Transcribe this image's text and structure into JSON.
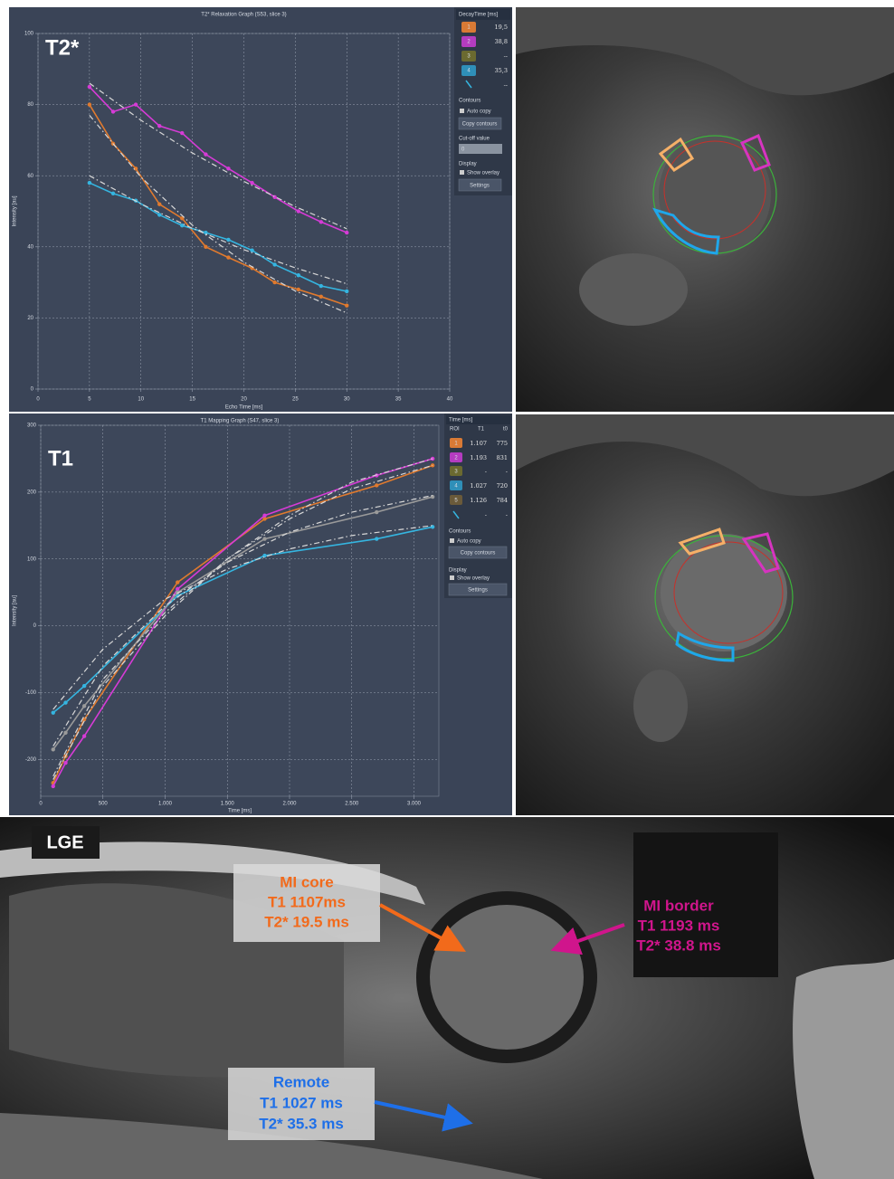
{
  "chart_data": [
    {
      "type": "line",
      "label": "T2*",
      "title": "T2* Relaxation Graph (S53, slice 3)",
      "x_label": "Echo Time [ms]",
      "y_label": "Intensity [au]",
      "xlim": [
        0,
        40
      ],
      "xticks": [
        0,
        5,
        10,
        15,
        20,
        25,
        30,
        35,
        40
      ],
      "ylim": [
        0,
        100
      ],
      "yticks": [
        0,
        20,
        40,
        60,
        80,
        100
      ],
      "grid": true,
      "series": [
        {
          "color": "#e07a2e",
          "markers": true,
          "x": [
            5,
            7.3,
            9.5,
            11.8,
            14,
            16.3,
            18.5,
            20.8,
            23,
            25.3,
            27.5,
            30
          ],
          "values": [
            80,
            69,
            62,
            52,
            48,
            40,
            37,
            34,
            30,
            28,
            26,
            23.5
          ]
        },
        {
          "color": "#d63bd6",
          "markers": true,
          "x": [
            5,
            7.3,
            9.5,
            11.8,
            14,
            16.3,
            18.5,
            20.8,
            23,
            25.3,
            27.5,
            30
          ],
          "values": [
            85,
            78,
            80,
            74,
            72,
            66,
            62,
            58,
            54,
            50,
            47,
            44
          ]
        },
        {
          "color": "#35b5e0",
          "markers": true,
          "x": [
            5,
            7.3,
            9.5,
            11.8,
            14,
            16.3,
            18.5,
            20.8,
            23,
            25.3,
            27.5,
            30
          ],
          "values": [
            58,
            55,
            53,
            49,
            46,
            44,
            42,
            39,
            35,
            32,
            29,
            27.5
          ]
        },
        {
          "color": "#d8d8d8",
          "dashed": true,
          "x": [
            5,
            10,
            15,
            20,
            25,
            30
          ],
          "values": [
            77,
            59.6,
            46.1,
            35.7,
            27.6,
            21.4
          ]
        },
        {
          "color": "#d8d8d8",
          "dashed": true,
          "x": [
            5,
            10,
            15,
            20,
            25,
            30
          ],
          "values": [
            86,
            75.6,
            66.4,
            58.4,
            51.3,
            45.1
          ]
        },
        {
          "color": "#d8d8d8",
          "dashed": true,
          "x": [
            5,
            10,
            15,
            20,
            25,
            30
          ],
          "values": [
            60,
            52.1,
            45.2,
            39.2,
            34.1,
            29.6
          ]
        }
      ]
    },
    {
      "type": "line",
      "label": "T1",
      "title": "T1 Mapping Graph (S47, slice 3)",
      "x_label": "Time [ms]",
      "y_label": "Intensity [au]",
      "xlim": [
        0,
        3200
      ],
      "xticks": [
        0,
        500,
        {
          "value": 1000,
          "label": "1.000"
        },
        {
          "value": 1500,
          "label": "1.500"
        },
        {
          "value": 2000,
          "label": "2.000"
        },
        {
          "value": 2500,
          "label": "2.500"
        },
        {
          "value": 3000,
          "label": "3.000"
        }
      ],
      "ylim": [
        -255,
        300
      ],
      "yticks": [
        -200,
        -100,
        0,
        100,
        200,
        300
      ],
      "grid": true,
      "series": [
        {
          "color": "#e07a2e",
          "markers": true,
          "x": [
            100,
            200,
            350,
            1100,
            1800,
            2700,
            3150
          ],
          "values": [
            -235,
            -195,
            -140,
            65,
            160,
            210,
            240
          ]
        },
        {
          "color": "#d63bd6",
          "markers": true,
          "x": [
            100,
            200,
            350,
            1100,
            1800,
            2700,
            3150
          ],
          "values": [
            -240,
            -205,
            -165,
            55,
            165,
            225,
            250
          ]
        },
        {
          "color": "#35b5e0",
          "markers": true,
          "x": [
            100,
            200,
            350,
            1100,
            1800,
            2700,
            3150
          ],
          "values": [
            -130,
            -115,
            -90,
            45,
            105,
            130,
            148
          ]
        },
        {
          "color": "#9a9a9a",
          "markers": true,
          "x": [
            100,
            200,
            350,
            1100,
            1800,
            2700,
            3150
          ],
          "values": [
            -185,
            -160,
            -120,
            50,
            130,
            170,
            193
          ]
        },
        {
          "color": "#d8d8d8",
          "dashed": true,
          "x": [
            100,
            500,
            1000,
            1500,
            2000,
            2500,
            3150
          ],
          "values": [
            -225,
            -80,
            20,
            100,
            160,
            205,
            240
          ]
        },
        {
          "color": "#d8d8d8",
          "dashed": true,
          "x": [
            100,
            500,
            1000,
            1500,
            2000,
            2500,
            3150
          ],
          "values": [
            -230,
            -90,
            15,
            100,
            165,
            215,
            250
          ]
        },
        {
          "color": "#d8d8d8",
          "dashed": true,
          "x": [
            100,
            500,
            1000,
            1500,
            2000,
            2500,
            3150
          ],
          "values": [
            -125,
            -35,
            40,
            85,
            115,
            135,
            150
          ]
        },
        {
          "color": "#d8d8d8",
          "dashed": true,
          "x": [
            100,
            500,
            1000,
            1500,
            2000,
            2500,
            3150
          ],
          "values": [
            -180,
            -60,
            30,
            95,
            140,
            170,
            195
          ]
        }
      ]
    }
  ],
  "t2_panel": {
    "header": "DecayTime [ms]",
    "rows": [
      [
        "1",
        "19,5"
      ],
      [
        "2",
        "38,8"
      ],
      [
        "3",
        "--"
      ],
      [
        "4",
        "35,3"
      ],
      [
        "--"
      ]
    ],
    "contours": "Contours",
    "auto_copy": "Auto copy",
    "copy_button": "Copy contours",
    "cutoff_label": "Cut-off value",
    "cutoff_value": "0",
    "display": "Display",
    "show_overlay": "Show overlay",
    "settings": "Settings"
  },
  "t1_panel": {
    "header": "Time [ms]",
    "columns": [
      "ROI",
      "T1",
      "t0"
    ],
    "rows": [
      [
        "1",
        "1.107",
        "775"
      ],
      [
        "2",
        "1.193",
        "831"
      ],
      [
        "3",
        "-",
        "-"
      ],
      [
        "4",
        "1.027",
        "720"
      ],
      [
        "5",
        "1.126",
        "784"
      ],
      [
        "-",
        "-"
      ]
    ],
    "contours": "Contours",
    "auto_copy": "Auto copy",
    "copy_button": "Copy contours",
    "display": "Display",
    "show_overlay": "Show overlay",
    "settings": "Settings"
  },
  "lge": {
    "label": "LGE",
    "annotations": [
      {
        "lines": [
          "MI core",
          "T1 1107ms",
          "T2* 19.5 ms"
        ]
      },
      {
        "lines": [
          "MI border",
          "T1 1193 ms",
          "T2* 38.8 ms"
        ]
      },
      {
        "lines": [
          "Remote",
          "T1 1027 ms",
          "T2* 35.3 ms"
        ]
      }
    ]
  }
}
